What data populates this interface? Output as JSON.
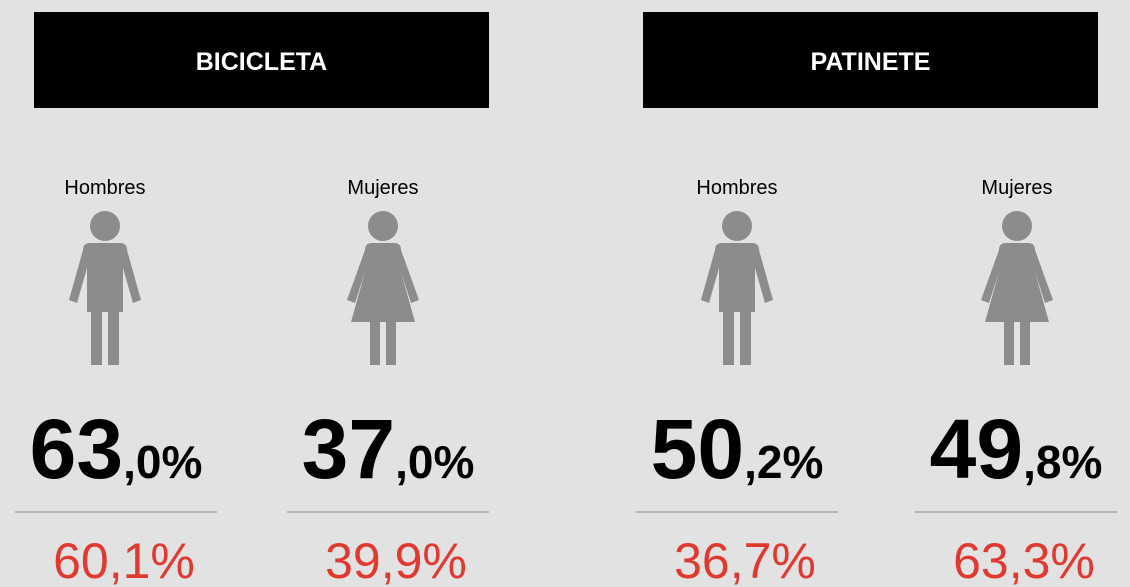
{
  "panels": [
    {
      "title": "BICICLETA",
      "groups": [
        {
          "label": "Hombres",
          "icon": "man",
          "main": "63",
          "decimal": ",0%",
          "secondary": "60,1%"
        },
        {
          "label": "Mujeres",
          "icon": "woman",
          "main": "37",
          "decimal": ",0%",
          "secondary": "39,9%"
        }
      ]
    },
    {
      "title": "PATINETE",
      "groups": [
        {
          "label": "Hombres",
          "icon": "man",
          "main": "50",
          "decimal": ",2%",
          "secondary": "36,7%"
        },
        {
          "label": "Mujeres",
          "icon": "woman",
          "main": "49",
          "decimal": ",8%",
          "secondary": "63,3%"
        }
      ]
    }
  ]
}
